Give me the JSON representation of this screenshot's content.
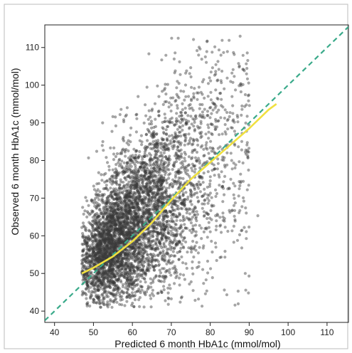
{
  "chart_data": {
    "type": "scatter",
    "xlabel": "Predicted 6 month HbA1c (mmol/mol)",
    "ylabel": "Observed 6 month HbA1c (mmol/mol)",
    "xlim": [
      37.5,
      115.5
    ],
    "ylim": [
      37,
      116
    ],
    "x_ticks": [
      40,
      50,
      60,
      70,
      80,
      90,
      100,
      110
    ],
    "y_ticks": [
      40,
      50,
      60,
      70,
      80,
      90,
      100,
      110
    ],
    "grid": false,
    "colors": {
      "points": "#3a3a3a",
      "smooth_line": "#f0e040",
      "identity_line": "#3aaa8a"
    },
    "point_cloud": {
      "count": 5000,
      "density_peak": [
        57,
        54
      ],
      "x_range": [
        47,
        97
      ],
      "y_range": [
        41,
        113
      ]
    },
    "smoothed_fit": {
      "x": [
        47,
        50,
        55,
        60,
        65,
        70,
        75,
        80,
        85,
        90,
        95,
        97
      ],
      "y": [
        50,
        51.5,
        54.5,
        58.5,
        63.5,
        69.5,
        75,
        79.5,
        84,
        88.5,
        93.5,
        95
      ]
    },
    "identity_line": {
      "x": [
        37.5,
        115.5
      ],
      "y": [
        37.5,
        115.5
      ]
    }
  }
}
